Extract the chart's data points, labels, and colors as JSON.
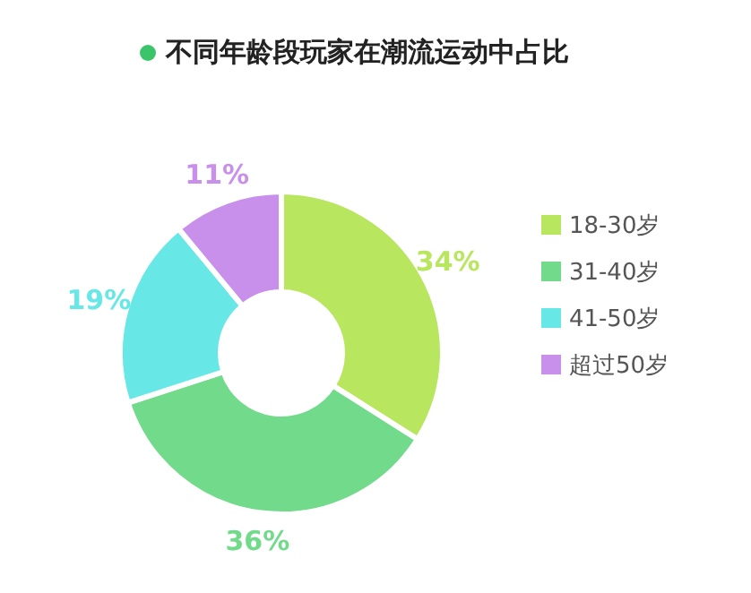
{
  "chart_data": {
    "type": "donut",
    "title": "不同年龄段玩家在潮流运动中占比",
    "categories": [
      "18-30岁",
      "31-40岁",
      "41-50岁",
      "超过50岁"
    ],
    "values": [
      34,
      36,
      19,
      11
    ],
    "value_labels": [
      "34%",
      "36%",
      "19%",
      "11%"
    ],
    "colors": [
      "#b8e65f",
      "#72da8b",
      "#67e7e6",
      "#c890ea"
    ],
    "legend": "right"
  }
}
